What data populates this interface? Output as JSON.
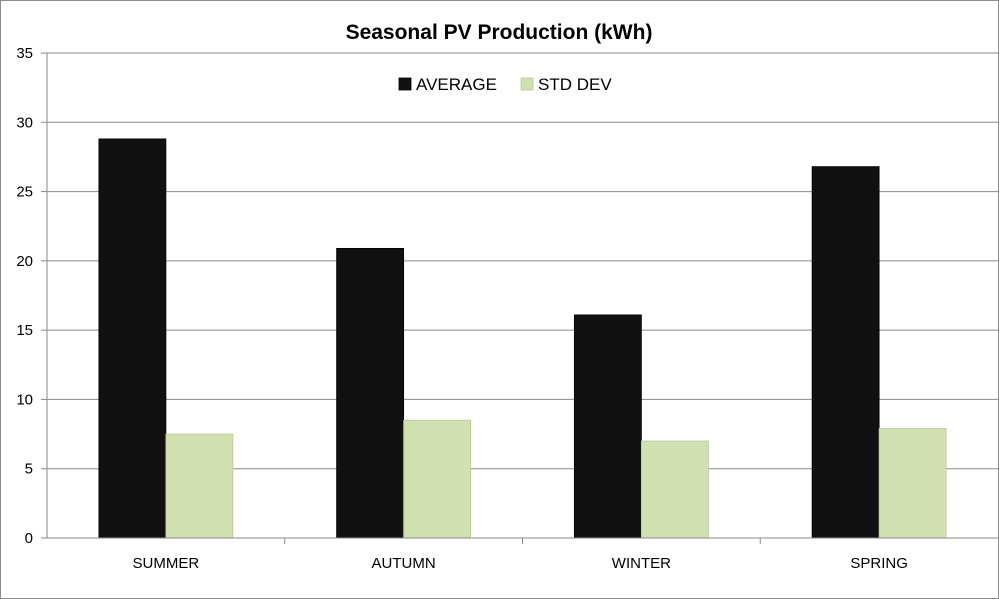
{
  "chart_data": {
    "type": "bar",
    "title": "Seasonal PV Production (kWh)",
    "xlabel": "",
    "ylabel": "",
    "categories": [
      "SUMMER",
      "AUTUMN",
      "WINTER",
      "SPRING"
    ],
    "series": [
      {
        "name": "AVERAGE",
        "values": [
          28.8,
          20.9,
          16.1,
          26.8
        ],
        "color": "#111111"
      },
      {
        "name": "STD DEV",
        "values": [
          7.5,
          8.5,
          7.0,
          7.9
        ],
        "color": "#d0e0b0"
      }
    ],
    "ylim": [
      0,
      35
    ],
    "yticks": [
      0,
      5,
      10,
      15,
      20,
      25,
      30,
      35
    ],
    "grid": true,
    "legend_position": "top-center"
  }
}
